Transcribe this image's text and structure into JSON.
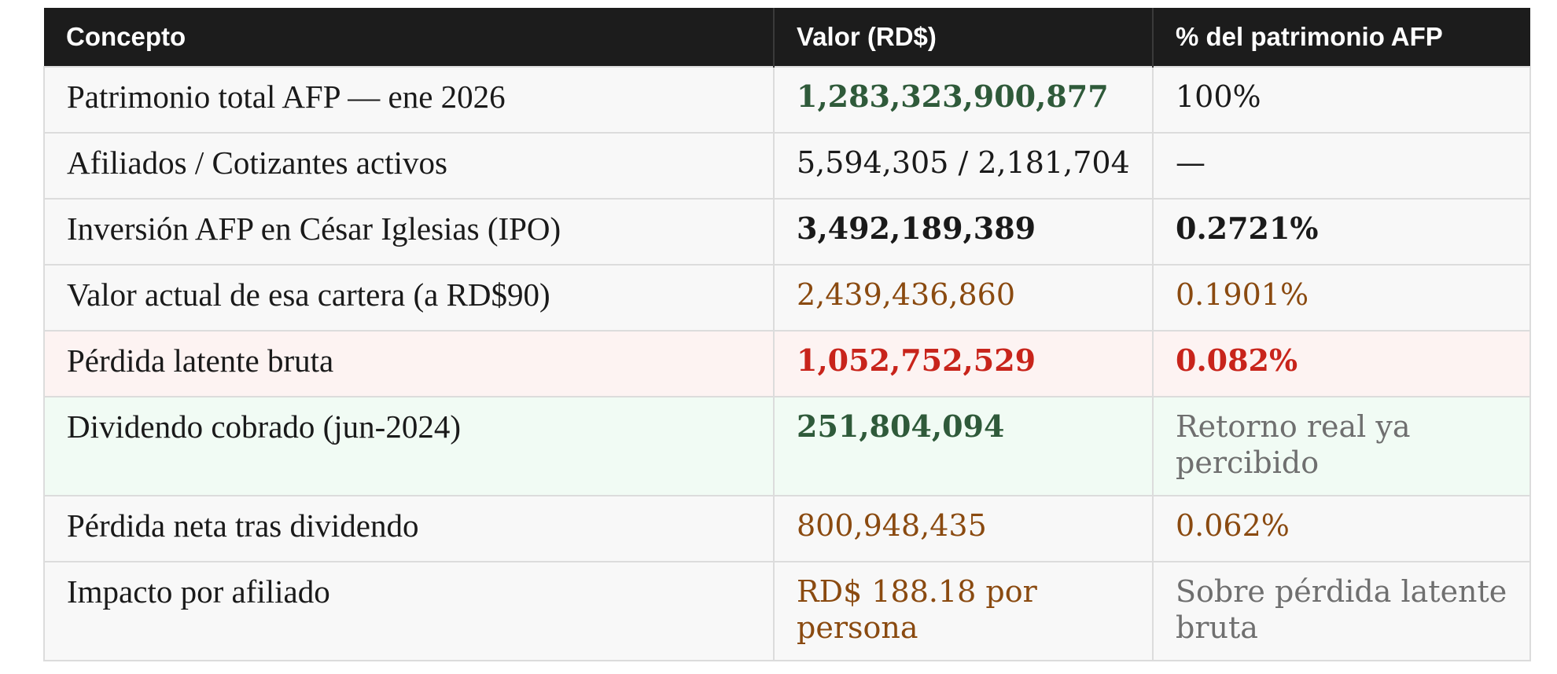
{
  "table": {
    "headers": [
      "Concepto",
      "Valor (RD$)",
      "% del patrimonio AFP"
    ],
    "rows": [
      {
        "concepto": "Patrimonio total AFP — ene 2026",
        "valor": "1,283,323,900,877",
        "pct": "100%"
      },
      {
        "concepto": "Afiliados / Cotizantes activos",
        "valor": "5,594,305 / 2,181,704",
        "pct": "—"
      },
      {
        "concepto": "Inversión AFP en César Iglesias (IPO)",
        "valor": "3,492,189,389",
        "pct": "0.2721%"
      },
      {
        "concepto": "Valor actual de esa cartera (a RD$90)",
        "valor": "2,439,436,860",
        "pct": "0.1901%"
      },
      {
        "concepto": "Pérdida latente bruta",
        "valor": "1,052,752,529",
        "pct": "0.082%"
      },
      {
        "concepto": "Dividendo cobrado (jun-2024)",
        "valor": "251,804,094",
        "pct": "Retorno real ya percibido"
      },
      {
        "concepto": "Pérdida neta tras dividendo",
        "valor": "800,948,435",
        "pct": "0.062%"
      },
      {
        "concepto": "Impacto por afiliado",
        "valor": "RD$ 188.18 por persona",
        "pct": "Sobre pérdida latente bruta"
      }
    ]
  },
  "colors": {
    "header_bg": "#1c1c1c",
    "green": "#2f5a3a",
    "brown": "#8a4a10",
    "red": "#c8241b",
    "grey": "#6f6f6f",
    "loss_row_bg": "#fdf3f2",
    "dividend_row_bg": "#f1fbf4"
  }
}
